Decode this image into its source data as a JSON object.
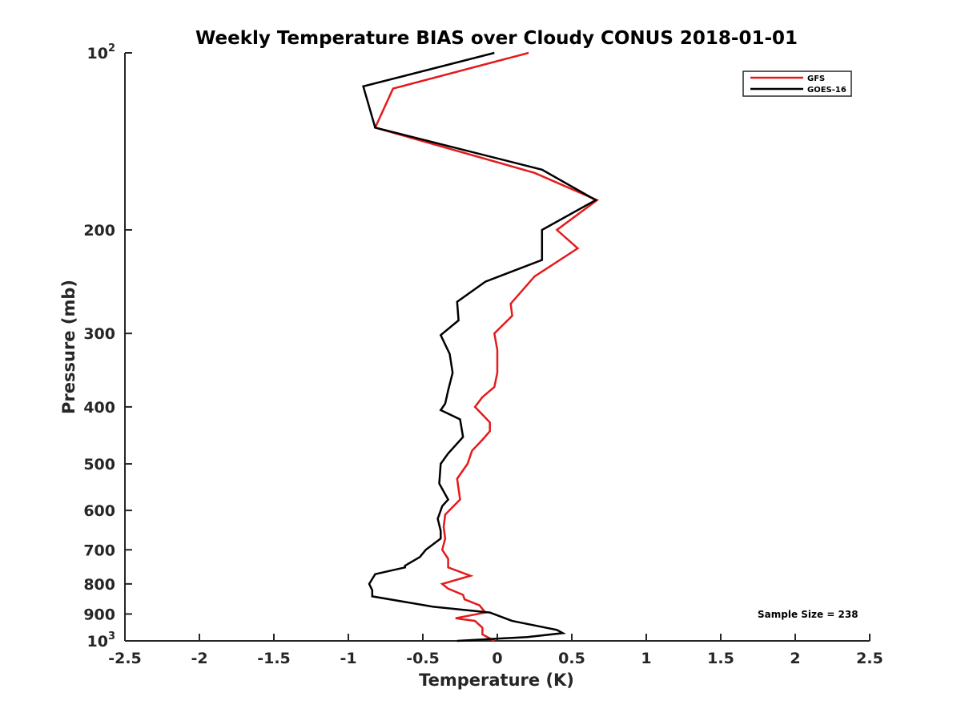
{
  "chart_data": {
    "type": "line",
    "title": "Weekly Temperature BIAS over Cloudy CONUS 2018-01-01",
    "xlabel": "Temperature (K)",
    "ylabel": "Pressure (mb)",
    "xlim": [
      -2.5,
      2.5
    ],
    "ylim": [
      100,
      1000
    ],
    "y_scale": "log",
    "y_reversed": true,
    "x_ticks": [
      {
        "value": -2.5,
        "label": "-2.5"
      },
      {
        "value": -2,
        "label": "-2"
      },
      {
        "value": -1.5,
        "label": "-1.5"
      },
      {
        "value": -1,
        "label": "-1"
      },
      {
        "value": -0.5,
        "label": "-0.5"
      },
      {
        "value": 0,
        "label": "0"
      },
      {
        "value": 0.5,
        "label": "0.5"
      },
      {
        "value": 1,
        "label": "1"
      },
      {
        "value": 1.5,
        "label": "1.5"
      },
      {
        "value": 2,
        "label": "2"
      },
      {
        "value": 2.5,
        "label": "2.5"
      }
    ],
    "y_ticks": [
      {
        "value": 100,
        "base": "10",
        "exp": "2"
      },
      {
        "value": 200,
        "label": "200"
      },
      {
        "value": 300,
        "label": "300"
      },
      {
        "value": 400,
        "label": "400"
      },
      {
        "value": 500,
        "label": "500"
      },
      {
        "value": 600,
        "label": "600"
      },
      {
        "value": 700,
        "label": "700"
      },
      {
        "value": 800,
        "label": "800"
      },
      {
        "value": 900,
        "label": "900"
      },
      {
        "value": 1000,
        "base": "10",
        "exp": "3"
      }
    ],
    "grid": false,
    "legend_position": "top-right",
    "series": [
      {
        "name": "GFS",
        "color": "#e41a1c",
        "points": [
          [
            0.21,
            100
          ],
          [
            -0.7,
            115
          ],
          [
            -0.82,
            134
          ],
          [
            0.25,
            160
          ],
          [
            0.67,
            178
          ],
          [
            0.4,
            200
          ],
          [
            0.54,
            215
          ],
          [
            0.25,
            240
          ],
          [
            0.09,
            267
          ],
          [
            0.1,
            280
          ],
          [
            -0.02,
            300
          ],
          [
            0.0,
            320
          ],
          [
            0.0,
            350
          ],
          [
            -0.02,
            370
          ],
          [
            -0.1,
            385
          ],
          [
            -0.15,
            400
          ],
          [
            -0.05,
            425
          ],
          [
            -0.05,
            440
          ],
          [
            -0.1,
            455
          ],
          [
            -0.17,
            475
          ],
          [
            -0.2,
            500
          ],
          [
            -0.27,
            530
          ],
          [
            -0.25,
            575
          ],
          [
            -0.35,
            610
          ],
          [
            -0.36,
            640
          ],
          [
            -0.35,
            670
          ],
          [
            -0.37,
            700
          ],
          [
            -0.33,
            725
          ],
          [
            -0.33,
            750
          ],
          [
            -0.18,
            775
          ],
          [
            -0.37,
            800
          ],
          [
            -0.33,
            815
          ],
          [
            -0.23,
            835
          ],
          [
            -0.22,
            850
          ],
          [
            -0.12,
            870
          ],
          [
            -0.08,
            895
          ],
          [
            -0.28,
            915
          ],
          [
            -0.15,
            925
          ],
          [
            -0.1,
            950
          ],
          [
            -0.1,
            975
          ],
          [
            -0.02,
            1000
          ]
        ]
      },
      {
        "name": "GOES-16",
        "color": "#000000",
        "points": [
          [
            -0.02,
            100
          ],
          [
            -0.9,
            114
          ],
          [
            -0.82,
            134
          ],
          [
            0.3,
            158
          ],
          [
            0.66,
            178
          ],
          [
            0.3,
            200
          ],
          [
            0.3,
            225
          ],
          [
            -0.08,
            245
          ],
          [
            -0.27,
            265
          ],
          [
            -0.26,
            285
          ],
          [
            -0.38,
            302
          ],
          [
            -0.32,
            325
          ],
          [
            -0.3,
            350
          ],
          [
            -0.33,
            375
          ],
          [
            -0.35,
            395
          ],
          [
            -0.38,
            405
          ],
          [
            -0.25,
            420
          ],
          [
            -0.23,
            450
          ],
          [
            -0.33,
            480
          ],
          [
            -0.38,
            500
          ],
          [
            -0.39,
            540
          ],
          [
            -0.33,
            575
          ],
          [
            -0.37,
            590
          ],
          [
            -0.4,
            620
          ],
          [
            -0.38,
            650
          ],
          [
            -0.38,
            670
          ],
          [
            -0.48,
            700
          ],
          [
            -0.52,
            720
          ],
          [
            -0.62,
            745
          ],
          [
            -0.62,
            750
          ],
          [
            -0.82,
            770
          ],
          [
            -0.86,
            800
          ],
          [
            -0.84,
            820
          ],
          [
            -0.84,
            840
          ],
          [
            -0.43,
            875
          ],
          [
            -0.05,
            895
          ],
          [
            0.1,
            925
          ],
          [
            0.4,
            958
          ],
          [
            0.44,
            970
          ],
          [
            0.2,
            985
          ],
          [
            -0.27,
            1000
          ]
        ]
      }
    ],
    "annotations": [
      {
        "text": "Sample Size = 238"
      }
    ]
  }
}
